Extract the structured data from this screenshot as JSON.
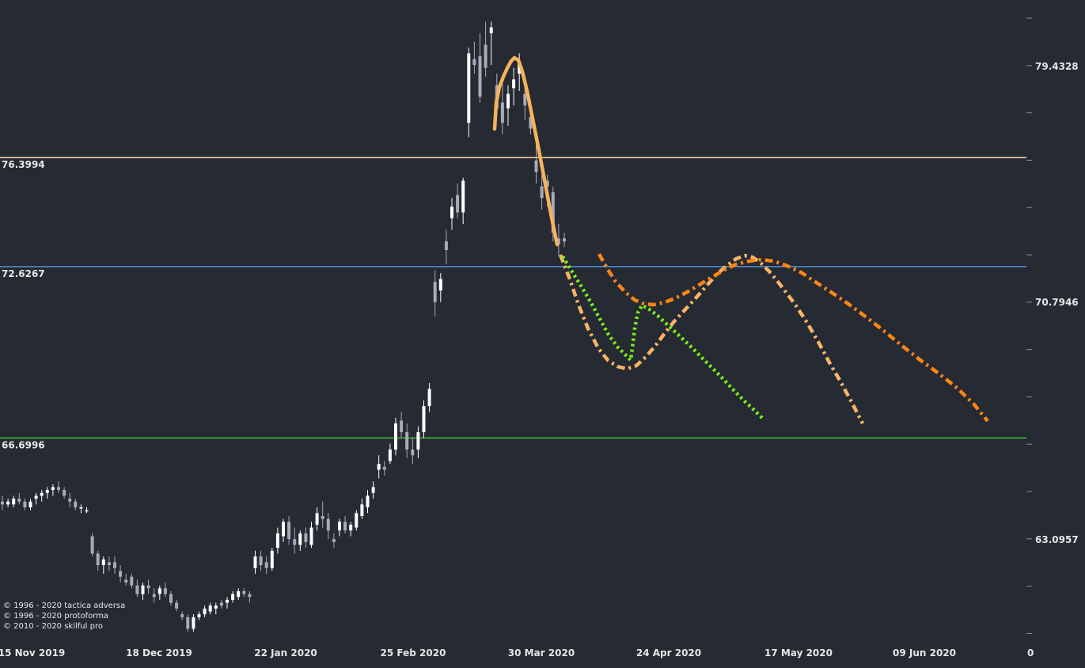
{
  "chart_data": {
    "type": "candlestick",
    "title": "",
    "xlabel": "",
    "ylabel": "",
    "ylim": [
      59.4,
      81.3
    ],
    "grid": false,
    "y_ticks": [
      "79.4328",
      "70.7946",
      "63.0957"
    ],
    "x_ticks": [
      "15 Nov 2019",
      "18 Dec 2019",
      "22 Jan 2020",
      "25 Feb 2020",
      "30 Mar 2020",
      "24 Apr 2020",
      "17 May 2020",
      "09 Jun 2020",
      "0"
    ],
    "levels": [
      {
        "value": 76.3994,
        "label": "76.3994",
        "color": "#ffe0b8"
      },
      {
        "value": 72.6267,
        "label": "72.6267",
        "color": "#4f8fd6"
      },
      {
        "value": 66.6996,
        "label": "66.6996",
        "color": "#3fbf3f"
      }
    ],
    "candles": [
      [
        64.5,
        64.7,
        64.2,
        64.4
      ],
      [
        64.4,
        64.6,
        64.3,
        64.5
      ],
      [
        64.4,
        64.7,
        64.3,
        64.6
      ],
      [
        64.6,
        64.8,
        64.4,
        64.5
      ],
      [
        64.5,
        64.6,
        64.2,
        64.3
      ],
      [
        64.3,
        64.6,
        64.2,
        64.5
      ],
      [
        64.6,
        64.8,
        64.4,
        64.7
      ],
      [
        64.7,
        64.9,
        64.5,
        64.8
      ],
      [
        64.8,
        65.0,
        64.6,
        64.9
      ],
      [
        64.9,
        65.1,
        64.7,
        65.0
      ],
      [
        65.0,
        65.2,
        64.8,
        64.9
      ],
      [
        64.9,
        65.0,
        64.6,
        64.7
      ],
      [
        64.6,
        64.8,
        64.3,
        64.5
      ],
      [
        64.5,
        64.6,
        64.2,
        64.3
      ],
      [
        64.3,
        64.4,
        64.1,
        64.3
      ],
      [
        64.2,
        64.3,
        64.1,
        64.2
      ],
      [
        63.3,
        63.4,
        62.6,
        62.7
      ],
      [
        62.7,
        62.8,
        62.1,
        62.3
      ],
      [
        62.3,
        62.6,
        62.0,
        62.5
      ],
      [
        62.4,
        62.6,
        62.1,
        62.3
      ],
      [
        62.4,
        62.6,
        62.0,
        62.2
      ],
      [
        62.1,
        62.3,
        61.7,
        61.9
      ],
      [
        61.8,
        62.0,
        61.6,
        61.7
      ],
      [
        61.9,
        62.0,
        61.5,
        61.6
      ],
      [
        61.6,
        61.8,
        61.2,
        61.3
      ],
      [
        61.3,
        61.7,
        61.1,
        61.6
      ],
      [
        61.6,
        61.8,
        61.3,
        61.5
      ],
      [
        61.3,
        61.5,
        61.0,
        61.2
      ],
      [
        61.3,
        61.6,
        61.1,
        61.5
      ],
      [
        61.5,
        61.7,
        61.2,
        61.3
      ],
      [
        61.3,
        61.4,
        60.9,
        61.0
      ],
      [
        61.0,
        61.1,
        60.7,
        60.8
      ],
      [
        60.6,
        60.7,
        60.4,
        60.5
      ],
      [
        60.5,
        60.6,
        60.0,
        60.1
      ],
      [
        60.1,
        60.6,
        60.0,
        60.5
      ],
      [
        60.5,
        60.7,
        60.4,
        60.6
      ],
      [
        60.6,
        60.9,
        60.5,
        60.8
      ],
      [
        60.7,
        61.0,
        60.6,
        60.9
      ],
      [
        60.8,
        61.0,
        60.6,
        60.9
      ],
      [
        61.0,
        61.1,
        60.8,
        60.9
      ],
      [
        61.0,
        61.2,
        60.8,
        61.1
      ],
      [
        61.1,
        61.4,
        61.0,
        61.3
      ],
      [
        61.2,
        61.5,
        61.1,
        61.4
      ],
      [
        61.4,
        61.5,
        61.2,
        61.3
      ],
      [
        61.3,
        61.4,
        61.0,
        61.2
      ],
      [
        62.2,
        62.8,
        62.0,
        62.6
      ],
      [
        62.6,
        62.8,
        62.1,
        62.3
      ],
      [
        62.4,
        62.6,
        62.0,
        62.2
      ],
      [
        62.2,
        62.9,
        62.1,
        62.8
      ],
      [
        62.9,
        63.6,
        62.7,
        63.4
      ],
      [
        63.3,
        63.9,
        63.1,
        63.8
      ],
      [
        63.8,
        64.0,
        63.0,
        63.2
      ],
      [
        63.2,
        63.6,
        62.7,
        63.0
      ],
      [
        63.0,
        63.5,
        62.8,
        63.4
      ],
      [
        63.4,
        63.6,
        62.9,
        63.1
      ],
      [
        63.0,
        63.8,
        62.9,
        63.6
      ],
      [
        63.7,
        64.3,
        63.5,
        64.1
      ],
      [
        64.0,
        64.5,
        63.6,
        63.9
      ],
      [
        63.9,
        64.1,
        63.2,
        63.5
      ],
      [
        63.2,
        63.4,
        62.9,
        63.1
      ],
      [
        63.5,
        63.9,
        63.3,
        63.8
      ],
      [
        63.8,
        64.0,
        63.4,
        63.5
      ],
      [
        63.5,
        63.8,
        63.3,
        63.7
      ],
      [
        63.6,
        64.2,
        63.5,
        64.1
      ],
      [
        64.0,
        64.6,
        63.9,
        64.4
      ],
      [
        64.3,
        64.9,
        64.1,
        64.7
      ],
      [
        64.8,
        65.2,
        64.6,
        65.0
      ],
      [
        65.6,
        66.1,
        65.3,
        65.8
      ],
      [
        65.7,
        65.9,
        65.4,
        65.6
      ],
      [
        65.9,
        66.5,
        65.8,
        66.3
      ],
      [
        66.3,
        67.4,
        66.1,
        67.2
      ],
      [
        67.3,
        67.6,
        66.7,
        66.9
      ],
      [
        66.9,
        67.2,
        66.0,
        66.3
      ],
      [
        66.3,
        66.7,
        65.8,
        66.1
      ],
      [
        66.3,
        67.1,
        66.0,
        66.9
      ],
      [
        66.9,
        68.0,
        66.7,
        67.8
      ],
      [
        67.8,
        68.6,
        67.6,
        68.4
      ],
      [
        72.1,
        72.5,
        70.9,
        71.4
      ],
      [
        71.8,
        72.4,
        71.4,
        72.2
      ],
      [
        73.5,
        73.9,
        72.7,
        73.2
      ],
      [
        74.3,
        75.0,
        73.9,
        74.7
      ],
      [
        75.1,
        75.5,
        74.3,
        74.5
      ],
      [
        74.5,
        75.7,
        74.1,
        75.6
      ],
      [
        77.6,
        80.2,
        77.1,
        80.0
      ],
      [
        79.8,
        80.4,
        79.3,
        79.6
      ],
      [
        79.9,
        80.7,
        78.3,
        78.5
      ],
      [
        80.3,
        81.1,
        79.2,
        79.5
      ],
      [
        80.7,
        81.1,
        79.6,
        80.9
      ],
      [
        78.9,
        79.3,
        77.9,
        78.1
      ],
      [
        78.3,
        79.0,
        77.2,
        77.6
      ],
      [
        78.1,
        78.9,
        77.5,
        78.6
      ],
      [
        78.8,
        79.5,
        78.2,
        79.1
      ],
      [
        79.3,
        80.0,
        78.7,
        79.7
      ],
      [
        78.6,
        79.2,
        77.7,
        78.2
      ],
      [
        77.8,
        78.4,
        77.2,
        77.4
      ],
      [
        76.3,
        77.0,
        75.5,
        75.9
      ],
      [
        75.4,
        75.8,
        74.6,
        75.0
      ],
      [
        75.6,
        75.8,
        74.7,
        75.4
      ],
      [
        75.2,
        75.4,
        73.5,
        73.8
      ],
      [
        73.6,
        74.1,
        73.0,
        73.4
      ],
      [
        73.6,
        73.8,
        73.3,
        73.5
      ]
    ],
    "path_lines": [
      {
        "kind": "solid",
        "color": "#f6b35a",
        "points": [
          [
            625,
            163
          ],
          [
            627,
            130
          ],
          [
            631,
            110
          ],
          [
            636,
            97
          ],
          [
            641,
            86
          ],
          [
            646,
            77
          ],
          [
            650,
            73
          ],
          [
            655,
            76
          ],
          [
            660,
            90
          ],
          [
            666,
            115
          ],
          [
            672,
            145
          ],
          [
            680,
            185
          ],
          [
            688,
            227
          ],
          [
            696,
            270
          ],
          [
            704,
            309
          ]
        ]
      },
      {
        "kind": "dash-dot",
        "color": "#f9b563",
        "points": [
          [
            708,
            322
          ],
          [
            719,
            350
          ],
          [
            731,
            385
          ],
          [
            743,
            415
          ],
          [
            756,
            440
          ],
          [
            768,
            455
          ],
          [
            780,
            463
          ],
          [
            792,
            466
          ],
          [
            804,
            462
          ],
          [
            816,
            451
          ],
          [
            828,
            437
          ],
          [
            840,
            421
          ],
          [
            852,
            406
          ],
          [
            865,
            392
          ],
          [
            878,
            378
          ],
          [
            892,
            362
          ],
          [
            905,
            347
          ],
          [
            918,
            336
          ],
          [
            930,
            327
          ],
          [
            941,
            323
          ],
          [
            951,
            325
          ],
          [
            962,
            333
          ],
          [
            975,
            346
          ],
          [
            990,
            365
          ],
          [
            1005,
            385
          ],
          [
            1020,
            408
          ],
          [
            1034,
            432
          ],
          [
            1048,
            458
          ],
          [
            1062,
            482
          ],
          [
            1075,
            506
          ],
          [
            1090,
            535
          ]
        ]
      },
      {
        "kind": "dash-dot",
        "color": "#ff8512",
        "points": [
          [
            757,
            321
          ],
          [
            767,
            339
          ],
          [
            778,
            356
          ],
          [
            790,
            369
          ],
          [
            802,
            379
          ],
          [
            814,
            384
          ],
          [
            826,
            385
          ],
          [
            840,
            382
          ],
          [
            855,
            376
          ],
          [
            870,
            368
          ],
          [
            885,
            359
          ],
          [
            900,
            350
          ],
          [
            915,
            341
          ],
          [
            930,
            334
          ],
          [
            946,
            330
          ],
          [
            962,
            328
          ],
          [
            978,
            330
          ],
          [
            995,
            336
          ],
          [
            1012,
            344
          ],
          [
            1030,
            356
          ],
          [
            1050,
            369
          ],
          [
            1072,
            384
          ],
          [
            1095,
            401
          ],
          [
            1118,
            419
          ],
          [
            1140,
            437
          ],
          [
            1163,
            455
          ],
          [
            1185,
            471
          ],
          [
            1208,
            489
          ],
          [
            1230,
            510
          ],
          [
            1248,
            532
          ]
        ]
      },
      {
        "kind": "dotted",
        "color": "#7cf017",
        "points": [
          [
            711,
            324
          ],
          [
            722,
            342
          ],
          [
            734,
            361
          ],
          [
            746,
            381
          ],
          [
            758,
            403
          ],
          [
            769,
            423
          ],
          [
            780,
            438
          ],
          [
            790,
            448
          ],
          [
            797,
            455
          ],
          [
            799,
            440
          ],
          [
            802,
            415
          ],
          [
            806,
            395
          ],
          [
            811,
            386
          ],
          [
            818,
            389
          ],
          [
            830,
            398
          ],
          [
            843,
            410
          ],
          [
            857,
            423
          ],
          [
            872,
            437
          ],
          [
            886,
            451
          ],
          [
            900,
            465
          ],
          [
            914,
            479
          ],
          [
            928,
            494
          ],
          [
            942,
            508
          ],
          [
            954,
            519
          ],
          [
            965,
            530
          ]
        ]
      }
    ]
  },
  "copyright_lines": [
    "© 1996 - 2020 tactica adversa",
    "© 1996 - 2020 protoforma",
    "© 2010 - 2020 skilful pro"
  ]
}
